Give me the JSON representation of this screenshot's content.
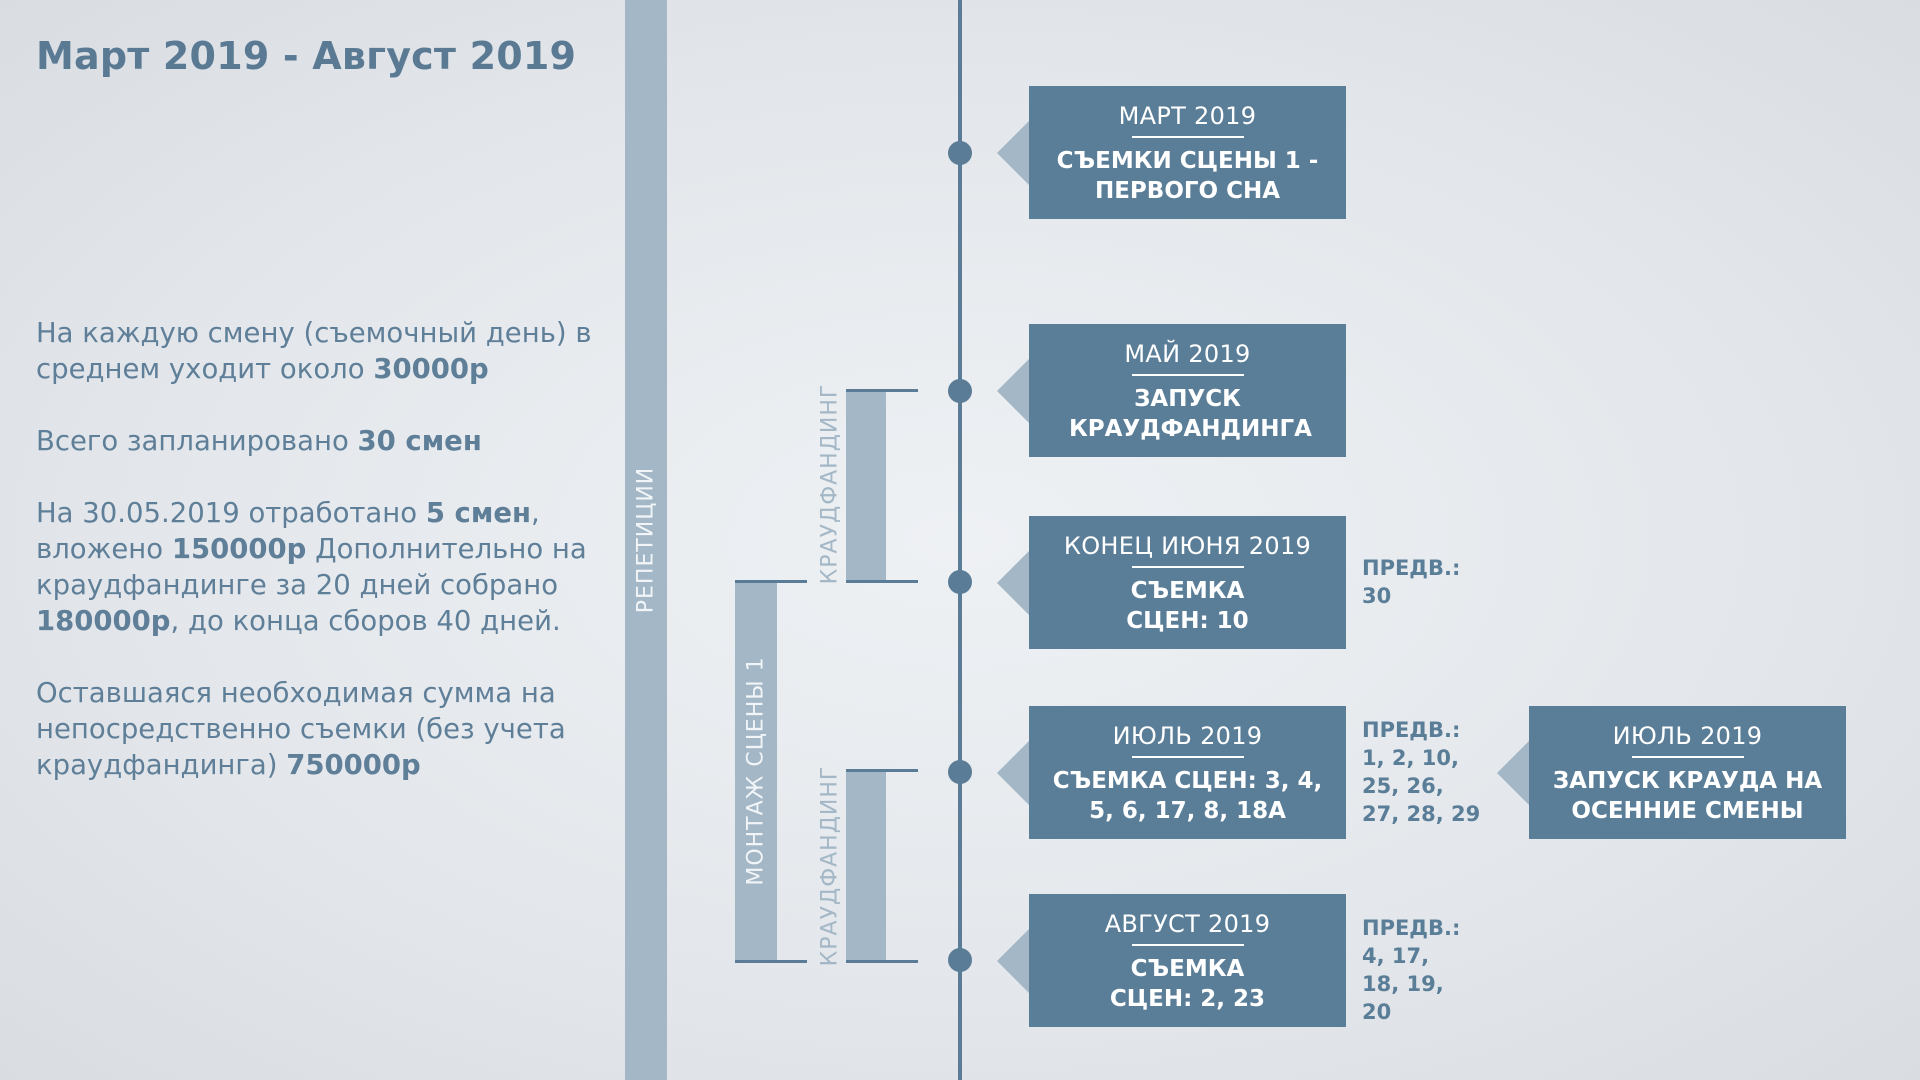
{
  "title": "Март 2019 - Август 2019",
  "info": {
    "p1_text": "На каждую смену (съемочный день) в среднем уходит около ",
    "p1_bold": "30000р",
    "p2_text": "Всего запланировано ",
    "p2_bold": "30 смен",
    "p3_text1": "На 30.05.2019 отработано ",
    "p3_bold1": "5 смен",
    "p3_text2": ", вложено ",
    "p3_bold2": "150000р",
    "p3_text3": " Дополнительно на краудфандинге за 20 дней собрано ",
    "p3_bold3": "180000р",
    "p3_text4": ", до конца сборов 40 дней.",
    "p4_text": "Оставшаяся необходимая сумма на непосредственно съемки (без учета краудфандинга) ",
    "p4_bold": "750000р"
  },
  "side_labels": {
    "rehearsals": "РЕПЕТИЦИИ",
    "montage": "МОНТАЖ СЦЕНЫ 1",
    "crowdfunding_1": "КРАУДФАНДИНГ",
    "crowdfunding_2": "КРАУДФАНДИНГ"
  },
  "events": [
    {
      "date": "МАРТ 2019",
      "desc": "СЪЕМКИ СЦЕНЫ 1 - ПЕРВОГО СНА"
    },
    {
      "date": "МАЙ 2019",
      "desc": "ЗАПУСК КРАУДФАНДИНГА"
    },
    {
      "date": "КОНЕЦ ИЮНЯ 2019",
      "desc": "СЪЕМКА СЦЕН: 10",
      "pred_label": "ПРЕДВ.:",
      "pred_value": "30"
    },
    {
      "date": "ИЮЛЬ 2019",
      "desc": "СЪЕМКА СЦЕН: 3, 4, 5, 6, 17, 8, 18А",
      "pred_label": "ПРЕДВ.:",
      "pred_value": "1, 2, 10, 25, 26, 27, 28, 29"
    },
    {
      "date": "АВГУСТ 2019",
      "desc": "СЪЕМКА СЦЕН: 2, 23",
      "pred_label": "ПРЕДВ.:",
      "pred_value": "4, 17, 18, 19, 20"
    }
  ],
  "extra_event": {
    "date": "ИЮЛЬ 2019",
    "desc": "ЗАПУСК КРАУДА НА ОСЕННИЕ СМЕНЫ"
  }
}
